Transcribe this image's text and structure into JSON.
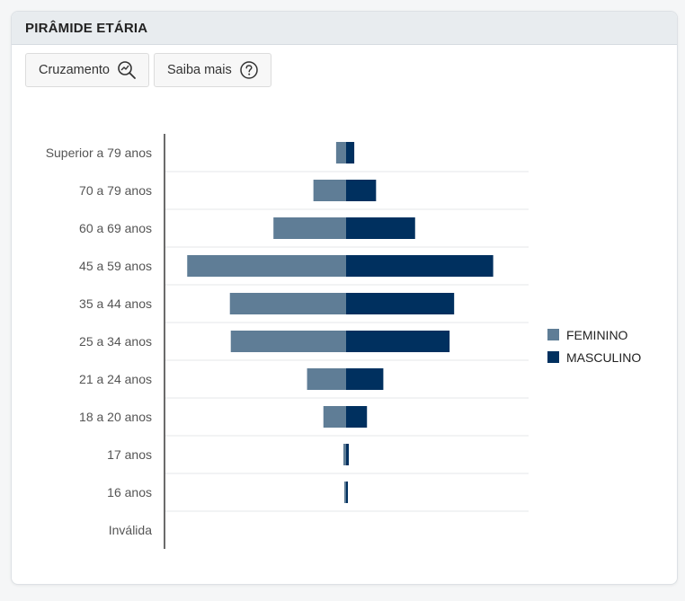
{
  "header": {
    "title": "PIRÂMIDE ETÁRIA"
  },
  "toolbar": {
    "cross_label": "Cruzamento",
    "cross_icon": "chart-magnifier-icon",
    "info_label": "Saiba mais",
    "info_icon": "help-circle-icon"
  },
  "colors": {
    "feminino": "#5f7d96",
    "masculino": "#00305f",
    "axis": "#6b6b6b",
    "grid": "#e4e7ea"
  },
  "chart_data": {
    "type": "bar",
    "orientation": "horizontal",
    "layout": "population-pyramid",
    "categories": [
      "Superior a 79 anos",
      "70 a 79 anos",
      "60 a 69 anos",
      "45 a 59 anos",
      "35 a 44 anos",
      "25 a 34 anos",
      "21 a 24 anos",
      "18 a 20 anos",
      "17 anos",
      "16 anos",
      "Inválida"
    ],
    "series": [
      {
        "name": "FEMININO",
        "side": "left",
        "values": [
          11,
          36,
          80,
          175,
          128,
          127,
          43,
          25,
          3,
          2,
          0
        ]
      },
      {
        "name": "MASCULINO",
        "side": "right",
        "values": [
          9,
          33,
          76,
          162,
          119,
          114,
          41,
          23,
          3,
          2,
          0
        ]
      }
    ],
    "xlim": [
      -200,
      200
    ],
    "grid": true,
    "legend_position": "right"
  }
}
